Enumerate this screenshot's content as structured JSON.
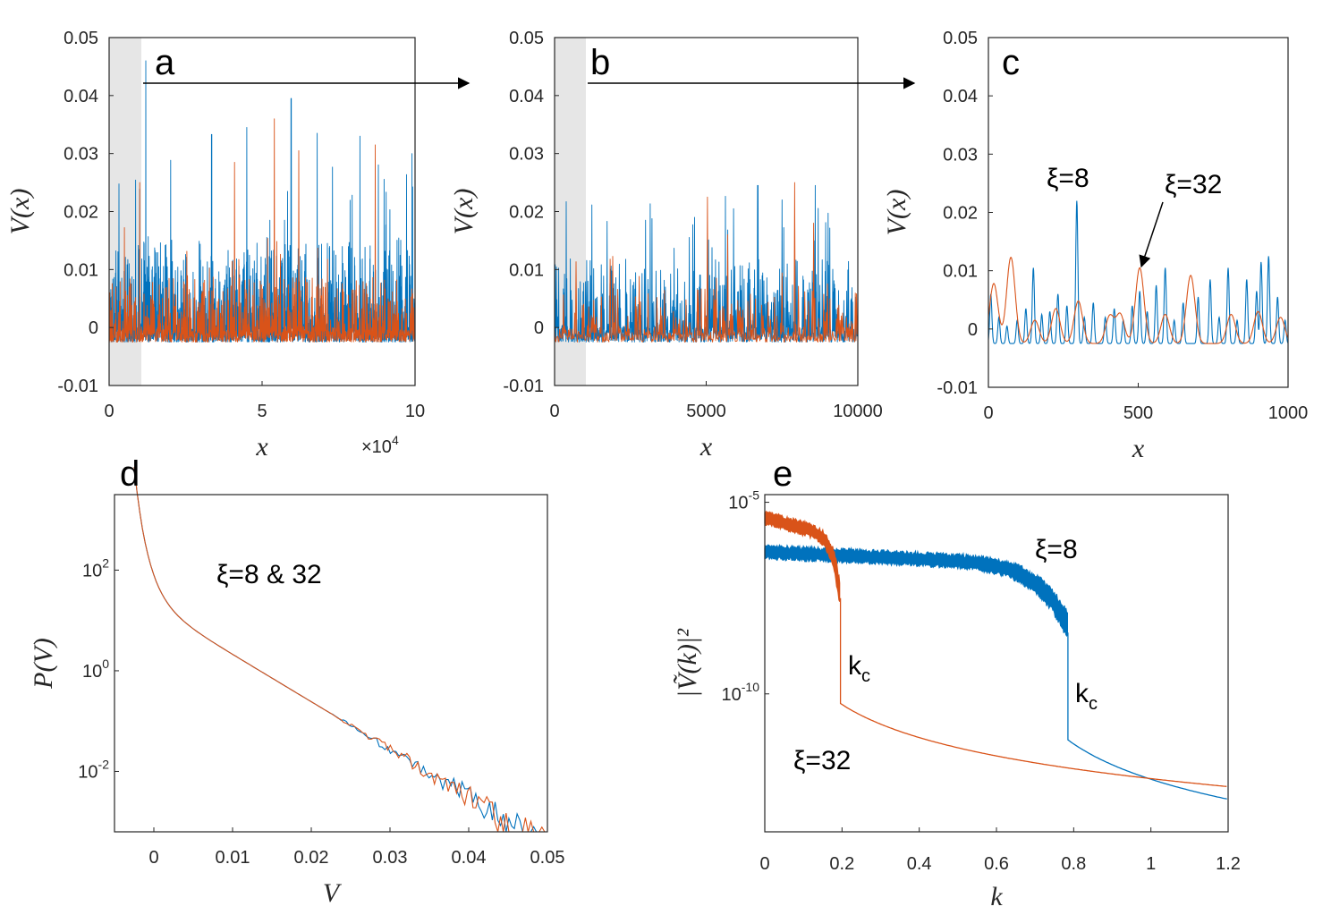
{
  "chart_data": [
    {
      "panel": "a",
      "type": "line",
      "xlabel": "x",
      "ylabel": "V(x)",
      "xlim": [
        0,
        10
      ],
      "ylim": [
        -0.01,
        0.05
      ],
      "xticks": [
        "0",
        "5",
        "10"
      ],
      "xtick_values": [
        0,
        5,
        10
      ],
      "yticks": [
        "-0.01",
        "0",
        "0.01",
        "0.02",
        "0.03",
        "0.04",
        "0.05"
      ],
      "ytick_values": [
        -0.01,
        0,
        0.01,
        0.02,
        0.03,
        0.04,
        0.05
      ],
      "x_multiplier": {
        "base": "×10",
        "exp": "4"
      },
      "shaded_region": [
        0,
        1.05
      ],
      "baseline": -0.0025,
      "series": [
        {
          "name": "ξ=8",
          "color": "#0072BD",
          "n": 900,
          "typical": 0.0055,
          "max": 0.046,
          "peaks": [
            [
              1.2,
              0.046
            ],
            [
              5.95,
              0.0395
            ],
            [
              4.5,
              0.0345
            ],
            [
              3.35,
              0.0333
            ],
            [
              8.2,
              0.033
            ],
            [
              6.8,
              0.0335
            ],
            [
              9.9,
              0.03
            ]
          ]
        },
        {
          "name": "ξ=32",
          "color": "#D95319",
          "n": 500,
          "typical": 0.0035,
          "max": 0.036,
          "peaks": [
            [
              5.4,
              0.036
            ],
            [
              8.7,
              0.0315
            ],
            [
              6.2,
              0.0305
            ],
            [
              1.0,
              0.025
            ],
            [
              4.1,
              0.0285
            ]
          ]
        }
      ]
    },
    {
      "panel": "b",
      "type": "line",
      "xlabel": "x",
      "ylabel": "V(x)",
      "xlim": [
        0,
        10000
      ],
      "ylim": [
        -0.01,
        0.05
      ],
      "xticks": [
        "0",
        "5000",
        "10000"
      ],
      "xtick_values": [
        0,
        5000,
        10000
      ],
      "yticks": [
        "-0.01",
        "0",
        "0.01",
        "0.02",
        "0.03",
        "0.04",
        "0.05"
      ],
      "ytick_values": [
        -0.01,
        0,
        0.01,
        0.02,
        0.03,
        0.04,
        0.05
      ],
      "shaded_region": [
        0,
        1050
      ],
      "baseline": -0.0025,
      "series": [
        {
          "name": "ξ=8",
          "color": "#0072BD",
          "n": 520,
          "typical": 0.0045,
          "max": 0.0245,
          "peaks": [
            [
              6700,
              0.0245
            ],
            [
              8600,
              0.0245
            ],
            [
              7500,
              0.022
            ],
            [
              5900,
              0.0205
            ],
            [
              3000,
              0.0185
            ]
          ]
        },
        {
          "name": "ξ=32",
          "color": "#D95319",
          "n": 240,
          "typical": 0.003,
          "max": 0.025,
          "peaks": [
            [
              7900,
              0.025
            ],
            [
              5050,
              0.0225
            ],
            [
              5700,
              0.016
            ],
            [
              8550,
              0.018
            ]
          ]
        }
      ]
    },
    {
      "panel": "c",
      "type": "line",
      "xlabel": "x",
      "ylabel": "V(x)",
      "xlim": [
        0,
        1000
      ],
      "ylim": [
        -0.01,
        0.05
      ],
      "xticks": [
        "0",
        "500",
        "1000"
      ],
      "xtick_values": [
        0,
        500,
        1000
      ],
      "yticks": [
        "-0.01",
        "0",
        "0.01",
        "0.02",
        "0.03",
        "0.04",
        "0.05"
      ],
      "ytick_values": [
        -0.01,
        0,
        0.01,
        0.02,
        0.03,
        0.04,
        0.05
      ],
      "baseline": -0.0025,
      "series": [
        {
          "name": "ξ=8",
          "color": "#0072BD",
          "peaks": [
            [
              8,
              0.006
            ],
            [
              35,
              0.002
            ],
            [
              62,
              0.0005
            ],
            [
              96,
              0.0015
            ],
            [
              125,
              0.0035
            ],
            [
              150,
              0.0105
            ],
            [
              178,
              0.0025
            ],
            [
              205,
              0.003
            ],
            [
              232,
              0.006
            ],
            [
              262,
              0.004
            ],
            [
              295,
              0.022
            ],
            [
              320,
              0.002
            ],
            [
              350,
              0.0045
            ],
            [
              390,
              0.002
            ],
            [
              420,
              0.0035
            ],
            [
              450,
              0.0015
            ],
            [
              480,
              0.004
            ],
            [
              505,
              0.0065
            ],
            [
              530,
              0.003
            ],
            [
              560,
              0.0075
            ],
            [
              590,
              0.0105
            ],
            [
              620,
              0.0015
            ],
            [
              650,
              0.0045
            ],
            [
              700,
              0.0055
            ],
            [
              740,
              0.0085
            ],
            [
              770,
              0.002
            ],
            [
              800,
              0.0105
            ],
            [
              830,
              0.0015
            ],
            [
              862,
              0.0085
            ],
            [
              895,
              0.0065
            ],
            [
              910,
              0.0115
            ],
            [
              935,
              0.0125
            ],
            [
              965,
              0.0055
            ],
            [
              990,
              0.0015
            ]
          ]
        },
        {
          "name": "ξ=32",
          "color": "#D95319",
          "peaks": [
            [
              18,
              0.0078
            ],
            [
              75,
              0.0123
            ],
            [
              155,
              0.0015
            ],
            [
              225,
              0.0035
            ],
            [
              300,
              0.0048
            ],
            [
              405,
              0.0022
            ],
            [
              440,
              0.0025
            ],
            [
              505,
              0.0105
            ],
            [
              590,
              0.0025
            ],
            [
              675,
              0.0092
            ],
            [
              810,
              0.0025
            ],
            [
              900,
              0.003
            ],
            [
              975,
              0.002
            ]
          ]
        }
      ],
      "annotations": [
        {
          "text": "ξ=8",
          "x": 295,
          "y": 0.022
        },
        {
          "text": "ξ=32",
          "x": 505,
          "y": 0.0105
        }
      ]
    },
    {
      "panel": "d",
      "type": "line",
      "xlabel": "V",
      "ylabel": "P(V)",
      "xlim": [
        -0.005,
        0.05
      ],
      "ylog": true,
      "ylim_log10": [
        -3.2,
        3.5
      ],
      "xticks": [
        "0",
        "0.01",
        "0.02",
        "0.03",
        "0.04",
        "0.05"
      ],
      "xtick_values": [
        0,
        0.01,
        0.02,
        0.03,
        0.04,
        0.05
      ],
      "yticks": [
        {
          "base": "10",
          "exp": "2",
          "value": 2
        },
        {
          "base": "10",
          "exp": "0",
          "value": 0
        },
        {
          "base": "10",
          "exp": "-2",
          "value": -2
        }
      ],
      "series": [
        {
          "name": "ξ=8",
          "color": "#0072BD"
        },
        {
          "name": "ξ=32",
          "color": "#D95319"
        }
      ],
      "annotations": [
        {
          "text": "ξ=8 & 32",
          "x": 0.0125,
          "y": 1.6
        }
      ]
    },
    {
      "panel": "e",
      "type": "line",
      "xlabel": "k",
      "ylabel": "|Ṽ(k)|²",
      "xlim": [
        0,
        1.2
      ],
      "ylog": true,
      "ylim_log10": [
        -13.6,
        -4.8
      ],
      "xticks": [
        "0",
        "0.2",
        "0.4",
        "0.6",
        "0.8",
        "1",
        "1.2"
      ],
      "xtick_values": [
        0,
        0.2,
        0.4,
        0.6,
        0.8,
        1.0,
        1.2
      ],
      "yticks": [
        {
          "base": "10",
          "exp": "-5",
          "value": -5
        },
        {
          "base": "10",
          "exp": "-10",
          "value": -10
        }
      ],
      "series": [
        {
          "name": "ξ=8",
          "color": "#0072BD",
          "k_c": 0.785,
          "plateau_log10": -6.3
        },
        {
          "name": "ξ=32",
          "color": "#D95319",
          "k_c": 0.196,
          "plateau_log10": -5.4
        }
      ],
      "annotations": [
        {
          "text": "ξ=8",
          "x": 0.71,
          "y": -6.0
        },
        {
          "text": "ξ=32",
          "x": 0.17,
          "y": -11.6
        },
        {
          "text": "k",
          "sub": "c",
          "x": 0.22,
          "y": -9.0
        },
        {
          "text": "k",
          "sub": "c",
          "x": 0.805,
          "y": -10.0
        }
      ]
    }
  ],
  "panels": {
    "a": "a",
    "b": "b",
    "c": "c",
    "d": "d",
    "e": "e"
  },
  "colors": {
    "blue": "#0072BD",
    "orange": "#D95319",
    "shade": "#e6e6e6"
  }
}
